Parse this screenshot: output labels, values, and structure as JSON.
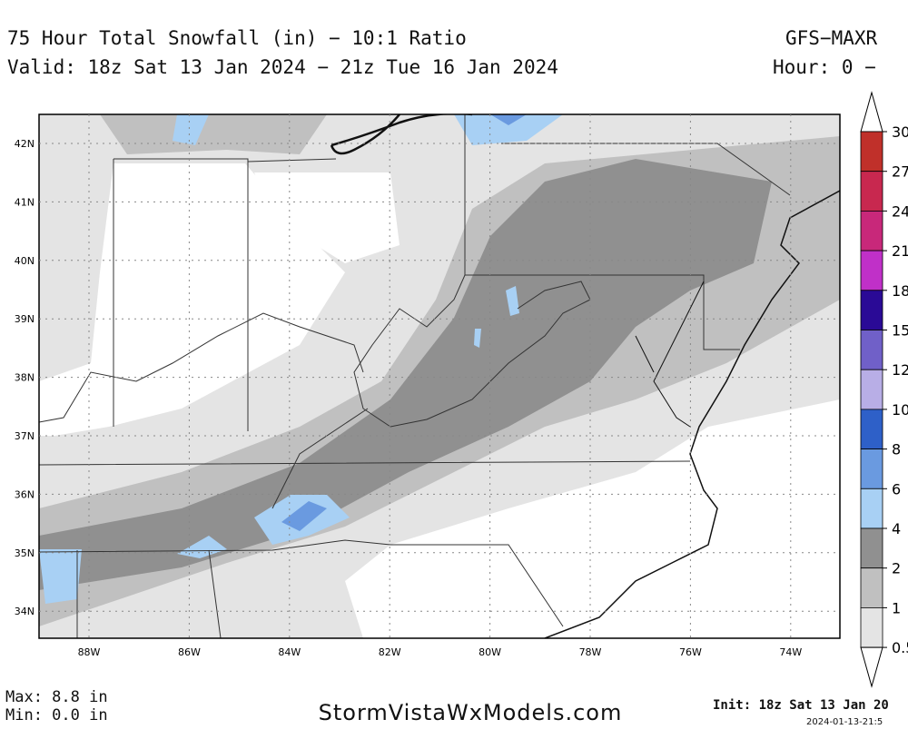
{
  "header": {
    "title": "75 Hour Total Snowfall (in) − 10:1 Ratio",
    "valid": "Valid: 18z Sat 13 Jan 2024 − 21z Tue 16 Jan 2024",
    "model": "GFS−MAXR",
    "hour": "Hour: 0 −"
  },
  "map": {
    "lat_labels": [
      "42N",
      "41N",
      "40N",
      "39N",
      "38N",
      "37N",
      "36N",
      "35N",
      "34N"
    ],
    "lon_labels": [
      "88W",
      "86W",
      "84W",
      "82W",
      "80W",
      "78W",
      "76W",
      "74W"
    ]
  },
  "legend": {
    "labels": [
      "30",
      "27",
      "24",
      "21",
      "18",
      "15",
      "12",
      "10",
      "8",
      "6",
      "4",
      "2",
      "1",
      "0.5"
    ],
    "colors": [
      "#c0302a",
      "#c8284f",
      "#c8287a",
      "#c030c8",
      "#2a0a96",
      "#7060c8",
      "#b8aee6",
      "#2e60c8",
      "#6a9ae0",
      "#a8d0f4",
      "#909090",
      "#c0c0c0",
      "#e4e4e4"
    ]
  },
  "footer": {
    "max": "Max: 8.8 in",
    "min": "Min: 0.0 in",
    "site": "StormVistaWxModels.com",
    "init": "Init: 18z Sat 13 Jan 20",
    "stamp": "2024-01-13-21:5"
  }
}
